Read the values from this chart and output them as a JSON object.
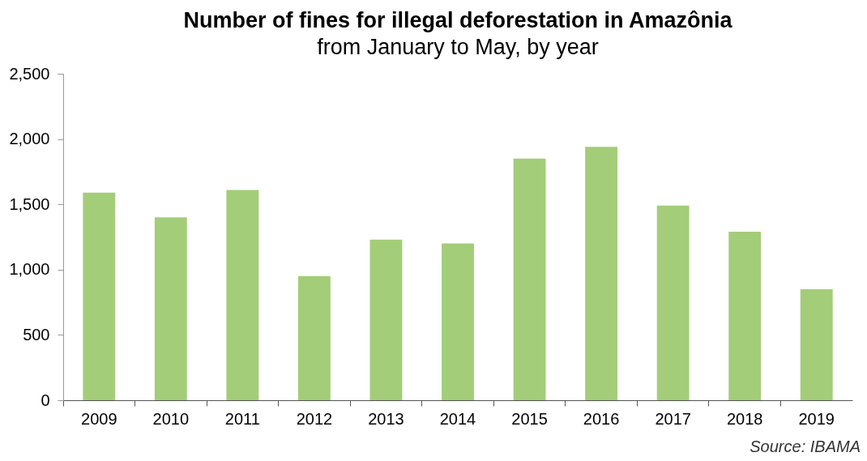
{
  "chart_data": {
    "type": "bar",
    "title": "Number of fines for illegal deforestation in Amazônia",
    "subtitle": "from January to May, by year",
    "categories": [
      "2009",
      "2010",
      "2011",
      "2012",
      "2013",
      "2014",
      "2015",
      "2016",
      "2017",
      "2018",
      "2019"
    ],
    "values": [
      1590,
      1400,
      1610,
      950,
      1230,
      1200,
      1850,
      1940,
      1490,
      1290,
      850
    ],
    "color": "#a3cd78",
    "ylim": [
      0,
      2500
    ],
    "yticks": [
      0,
      500,
      {
        "value": 1000,
        "label": "1,000"
      },
      {
        "value": 1500,
        "label": "1,500"
      },
      {
        "value": 2000,
        "label": "2,000"
      },
      {
        "value": 2500,
        "label": "2,500"
      }
    ],
    "grid": false,
    "annotations": [
      "Source: IBAMA"
    ]
  }
}
